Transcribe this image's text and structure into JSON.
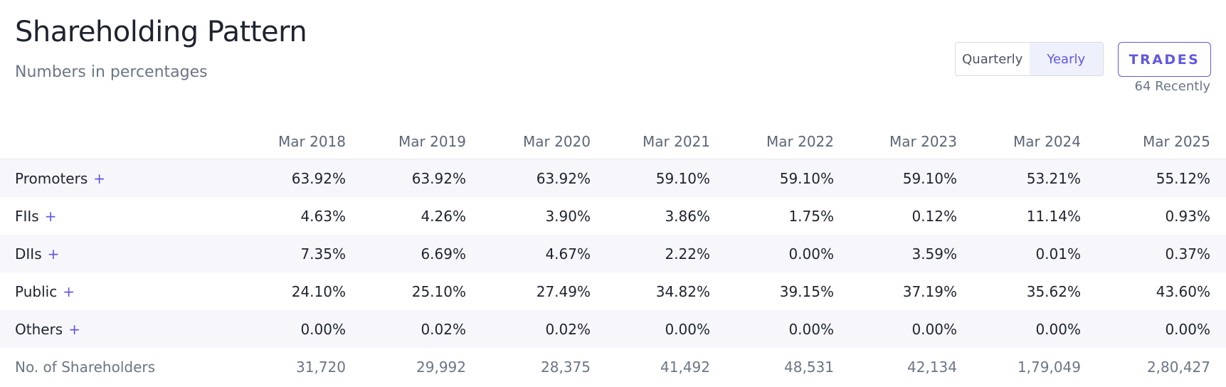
{
  "header": {
    "title": "Shareholding Pattern",
    "subtitle": "Numbers in percentages"
  },
  "toggle": {
    "options": [
      "Quarterly",
      "Yearly"
    ],
    "active": 1
  },
  "trades": {
    "label": "TRADES",
    "note": "64 Recently"
  },
  "table": {
    "columns": [
      "Mar 2018",
      "Mar 2019",
      "Mar 2020",
      "Mar 2021",
      "Mar 2022",
      "Mar 2023",
      "Mar 2024",
      "Mar 2025"
    ],
    "rows": [
      {
        "name": "Promoters",
        "expand": "+",
        "values": [
          "63.92%",
          "63.92%",
          "63.92%",
          "59.10%",
          "59.10%",
          "59.10%",
          "53.21%",
          "55.12%"
        ]
      },
      {
        "name": "FIIs",
        "expand": "+",
        "values": [
          "4.63%",
          "4.26%",
          "3.90%",
          "3.86%",
          "1.75%",
          "0.12%",
          "11.14%",
          "0.93%"
        ]
      },
      {
        "name": "DIIs",
        "expand": "+",
        "values": [
          "7.35%",
          "6.69%",
          "4.67%",
          "2.22%",
          "0.00%",
          "3.59%",
          "0.01%",
          "0.37%"
        ]
      },
      {
        "name": "Public",
        "expand": "+",
        "values": [
          "24.10%",
          "25.10%",
          "27.49%",
          "34.82%",
          "39.15%",
          "37.19%",
          "35.62%",
          "43.60%"
        ]
      },
      {
        "name": "Others",
        "expand": "+",
        "values": [
          "0.00%",
          "0.02%",
          "0.02%",
          "0.00%",
          "0.00%",
          "0.00%",
          "0.00%",
          "0.00%"
        ]
      },
      {
        "name": "No. of Shareholders",
        "values": [
          "31,720",
          "29,992",
          "28,375",
          "41,492",
          "48,531",
          "42,134",
          "1,79,049",
          "2,80,427"
        ]
      }
    ]
  }
}
